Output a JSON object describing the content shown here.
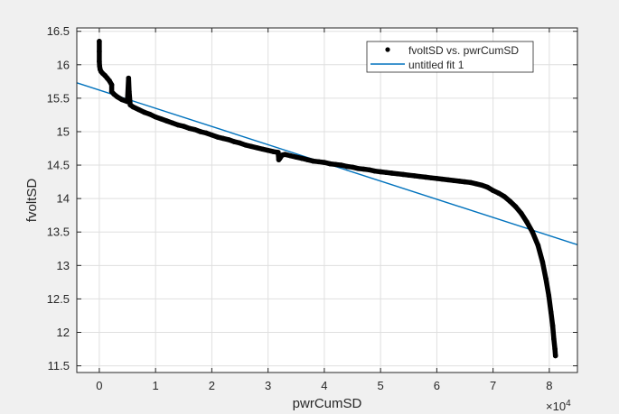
{
  "chart_data": {
    "type": "scatter",
    "xlabel": "pwrCumSD",
    "ylabel": "fvoltSD",
    "x_exponent_label": "×10",
    "x_exponent_power": "4",
    "xlim": [
      -4000,
      85000
    ],
    "ylim": [
      11.4,
      16.55
    ],
    "x_tick_values": [
      0,
      10000,
      20000,
      30000,
      40000,
      50000,
      60000,
      70000,
      80000
    ],
    "x_tick_labels": [
      "0",
      "1",
      "2",
      "3",
      "4",
      "5",
      "6",
      "7",
      "8"
    ],
    "y_tick_values": [
      11.5,
      12,
      12.5,
      13,
      13.5,
      14,
      14.5,
      15,
      15.5,
      16,
      16.5
    ],
    "y_tick_labels": [
      "11.5",
      "12",
      "12.5",
      "13",
      "13.5",
      "14",
      "14.5",
      "15",
      "15.5",
      "16",
      "16.5"
    ],
    "grid": true,
    "legend_placement": "top-right",
    "series": [
      {
        "name": "fvoltSD vs. pwrCumSD",
        "kind": "scatter",
        "color": "#000000",
        "points": [
          [
            0,
            16.35
          ],
          [
            0,
            16.2
          ],
          [
            0,
            16.05
          ],
          [
            50,
            15.98
          ],
          [
            150,
            15.93
          ],
          [
            300,
            15.9
          ],
          [
            600,
            15.87
          ],
          [
            1000,
            15.84
          ],
          [
            1400,
            15.8
          ],
          [
            1800,
            15.76
          ],
          [
            2200,
            15.7
          ],
          [
            2200,
            15.6
          ],
          [
            2600,
            15.56
          ],
          [
            3200,
            15.52
          ],
          [
            4000,
            15.48
          ],
          [
            5000,
            15.45
          ],
          [
            5200,
            15.8
          ],
          [
            5300,
            15.6
          ],
          [
            5500,
            15.4
          ],
          [
            6000,
            15.37
          ],
          [
            7000,
            15.33
          ],
          [
            8000,
            15.29
          ],
          [
            9000,
            15.26
          ],
          [
            10000,
            15.22
          ],
          [
            11000,
            15.19
          ],
          [
            12000,
            15.16
          ],
          [
            13000,
            15.13
          ],
          [
            14000,
            15.1
          ],
          [
            15000,
            15.08
          ],
          [
            16000,
            15.05
          ],
          [
            17000,
            15.03
          ],
          [
            18000,
            15.0
          ],
          [
            19000,
            14.98
          ],
          [
            20000,
            14.95
          ],
          [
            21000,
            14.92
          ],
          [
            22000,
            14.9
          ],
          [
            23000,
            14.88
          ],
          [
            24000,
            14.85
          ],
          [
            25000,
            14.83
          ],
          [
            26000,
            14.8
          ],
          [
            27000,
            14.78
          ],
          [
            28000,
            14.76
          ],
          [
            29000,
            14.74
          ],
          [
            30000,
            14.72
          ],
          [
            31000,
            14.7
          ],
          [
            31800,
            14.69
          ],
          [
            31900,
            14.58
          ],
          [
            32100,
            14.6
          ],
          [
            32500,
            14.65
          ],
          [
            33000,
            14.66
          ],
          [
            34000,
            14.64
          ],
          [
            35000,
            14.62
          ],
          [
            36000,
            14.6
          ],
          [
            37000,
            14.58
          ],
          [
            38000,
            14.56
          ],
          [
            39000,
            14.55
          ],
          [
            40000,
            14.54
          ],
          [
            41000,
            14.52
          ],
          [
            42000,
            14.51
          ],
          [
            43000,
            14.5
          ],
          [
            44000,
            14.48
          ],
          [
            45000,
            14.47
          ],
          [
            46000,
            14.45
          ],
          [
            47000,
            14.44
          ],
          [
            48000,
            14.43
          ],
          [
            49000,
            14.41
          ],
          [
            50000,
            14.4
          ],
          [
            51000,
            14.39
          ],
          [
            52000,
            14.38
          ],
          [
            53000,
            14.37
          ],
          [
            54000,
            14.36
          ],
          [
            55000,
            14.35
          ],
          [
            56000,
            14.34
          ],
          [
            57000,
            14.33
          ],
          [
            58000,
            14.32
          ],
          [
            59000,
            14.31
          ],
          [
            60000,
            14.3
          ],
          [
            61000,
            14.29
          ],
          [
            62000,
            14.28
          ],
          [
            63000,
            14.27
          ],
          [
            64000,
            14.26
          ],
          [
            65000,
            14.25
          ],
          [
            66000,
            14.24
          ],
          [
            67000,
            14.22
          ],
          [
            68000,
            14.2
          ],
          [
            69000,
            14.17
          ],
          [
            70000,
            14.12
          ],
          [
            71000,
            14.08
          ],
          [
            72000,
            14.03
          ],
          [
            73000,
            13.96
          ],
          [
            74000,
            13.88
          ],
          [
            75000,
            13.78
          ],
          [
            76000,
            13.65
          ],
          [
            77000,
            13.5
          ],
          [
            78000,
            13.3
          ],
          [
            78800,
            13.05
          ],
          [
            79400,
            12.8
          ],
          [
            79900,
            12.55
          ],
          [
            80300,
            12.3
          ],
          [
            80600,
            12.1
          ],
          [
            80800,
            11.9
          ],
          [
            81000,
            11.75
          ],
          [
            81100,
            11.65
          ]
        ]
      },
      {
        "name": "untitled fit 1",
        "kind": "line",
        "color": "#0072bd",
        "points": [
          [
            -4000,
            15.73
          ],
          [
            85000,
            13.31
          ]
        ]
      }
    ]
  }
}
